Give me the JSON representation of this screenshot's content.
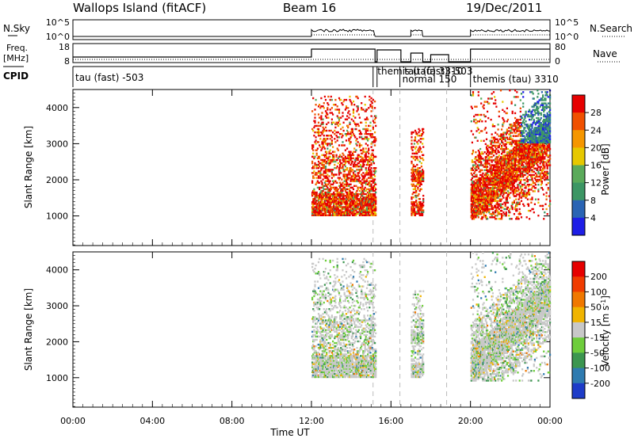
{
  "header": {
    "station": "Wallops Island (fitACF)",
    "beam": "Beam 16",
    "date": "19/Dec/2011"
  },
  "strip_labels": {
    "nsky": "N.Sky",
    "nsearch": "N.Search",
    "freq_line1": "Freq.",
    "freq_line2": "[MHz]",
    "nave": "Nave",
    "cpid": "CPID"
  },
  "strip_ticks": {
    "nsky_top": "10^5",
    "nsky_bottom": "10^0",
    "nsearch_top": "10^5",
    "nsearch_bottom": "10^0",
    "freq_top": "18",
    "freq_bottom": "8",
    "nave_top": "80",
    "nave_bottom": "0"
  },
  "cpid_labels": [
    {
      "text": "tau (fast) -503",
      "hour": 0.0
    },
    {
      "text": "themis (tau) 3310",
      "hour": 15.2
    },
    {
      "text": "tau (fast) -503",
      "hour": 16.55
    },
    {
      "text": "normal 150",
      "hour": 16.45
    },
    {
      "text": "themis (tau) 3310",
      "hour": 20.0
    }
  ],
  "chart_data": [
    {
      "type": "heatmap",
      "name": "power",
      "ylabel": "Slant Range [km]",
      "xlabel": "",
      "xlim": [
        0,
        24
      ],
      "ylim": [
        180,
        4500
      ],
      "yticks": [
        1000,
        2000,
        3000,
        4000
      ],
      "colorbar": {
        "label": "Power [dB]",
        "ticks": [
          "28",
          "24",
          "20",
          "16",
          "12",
          "8",
          "4"
        ],
        "range": [
          0,
          32
        ]
      },
      "echo_regions": [
        {
          "hours": [
            12.0,
            15.2
          ],
          "ranges_km": [
            1000,
            4300
          ]
        },
        {
          "hours": [
            17.0,
            17.6
          ],
          "ranges_km": [
            1000,
            3400
          ]
        },
        {
          "hours": [
            20.0,
            24.0
          ],
          "ranges_km": [
            900,
            4500
          ]
        }
      ]
    },
    {
      "type": "heatmap",
      "name": "velocity",
      "ylabel": "Slant Range [km]",
      "xlabel": "Time UT",
      "xlim": [
        0,
        24
      ],
      "ylim": [
        180,
        4500
      ],
      "yticks": [
        1000,
        2000,
        3000,
        4000
      ],
      "xticks": [
        "00:00",
        "04:00",
        "08:00",
        "12:00",
        "16:00",
        "20:00",
        "00:00"
      ],
      "colorbar": {
        "label": "Velocity [m s",
        "label_sup": "-1",
        "label_end": "]",
        "ticks": [
          "200",
          "100",
          "50",
          "15",
          "-15",
          "-50",
          "-100",
          "-200"
        ],
        "range": [
          -250,
          250
        ]
      },
      "echo_regions": [
        {
          "hours": [
            12.0,
            15.2
          ],
          "ranges_km": [
            1000,
            4300
          ]
        },
        {
          "hours": [
            17.0,
            17.6
          ],
          "ranges_km": [
            1000,
            3400
          ]
        },
        {
          "hours": [
            20.0,
            24.0
          ],
          "ranges_km": [
            900,
            4500
          ]
        }
      ]
    }
  ],
  "colors": {
    "power_scale": [
      "#1e1ee6",
      "#2a64b4",
      "#3c9664",
      "#5aaa5a",
      "#e6c800",
      "#f59600",
      "#f05000",
      "#e60000"
    ],
    "velocity_scale": [
      "#1e3cc8",
      "#2f7bb0",
      "#3c9650",
      "#6ecd3c",
      "#c8c8c8",
      "#f0b400",
      "#f07800",
      "#f03c00",
      "#e60000"
    ]
  }
}
